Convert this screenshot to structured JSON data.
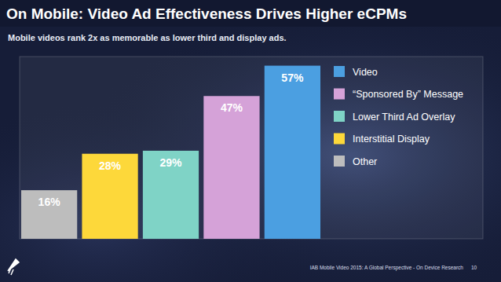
{
  "chart_data": {
    "type": "bar",
    "title": "On Mobile: Video Ad Effectiveness Drives Higher eCPMs",
    "subtitle": "Mobile videos rank 2x as memorable as lower third and display ads.",
    "categories": [
      "Other",
      "Interstitial Display",
      "Lower Third Ad Overlay",
      "“Sponsored By” Message",
      "Video"
    ],
    "values": [
      16,
      28,
      29,
      47,
      57
    ],
    "value_labels": [
      "16%",
      "28%",
      "29%",
      "47%",
      "57%"
    ],
    "colors": [
      "#bdbdbd",
      "#fdd83a",
      "#7fd3c6",
      "#d5a2d8",
      "#4b9fe1"
    ],
    "ylim": [
      0,
      60
    ],
    "data_labels": true,
    "tick_labels": false,
    "legend": "right",
    "annotations": [
      "IAB Mobile Video 2015: A Global Perspective - On Device Research",
      "10"
    ]
  }
}
